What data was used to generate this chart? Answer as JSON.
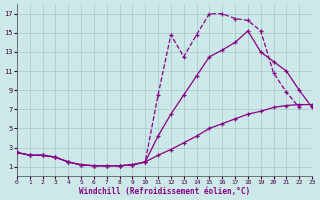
{
  "xlabel": "Windchill (Refroidissement éolien,°C)",
  "ylabel": "",
  "background_color": "#cce8e8",
  "grid_color": "#aacece",
  "line_color": "#880088",
  "xlim": [
    0,
    23
  ],
  "ylim": [
    0,
    18
  ],
  "xticks": [
    0,
    1,
    2,
    3,
    4,
    5,
    6,
    7,
    8,
    9,
    10,
    11,
    12,
    13,
    14,
    15,
    16,
    17,
    18,
    19,
    20,
    21,
    22,
    23
  ],
  "yticks": [
    1,
    3,
    5,
    7,
    9,
    11,
    13,
    15,
    17
  ],
  "line1_x": [
    0,
    1,
    2,
    3,
    4,
    5,
    6,
    7,
    8,
    9,
    10,
    11,
    12,
    13,
    14,
    15,
    16,
    17,
    18,
    19,
    20,
    21,
    22,
    23
  ],
  "line1_y": [
    2.5,
    2.2,
    2.2,
    2.0,
    1.5,
    1.2,
    1.1,
    1.1,
    1.1,
    1.2,
    1.5,
    8.5,
    14.8,
    12.5,
    14.8,
    17.0,
    17.0,
    16.5,
    16.3,
    15.2,
    10.8,
    8.8,
    7.2,
    null
  ],
  "line2_x": [
    0,
    1,
    2,
    3,
    4,
    5,
    6,
    7,
    8,
    9,
    10,
    11,
    12,
    13,
    14,
    15,
    16,
    17,
    18,
    19,
    20,
    21,
    22,
    23
  ],
  "line2_y": [
    2.5,
    2.2,
    2.2,
    2.0,
    1.5,
    1.2,
    1.1,
    1.1,
    1.1,
    1.2,
    1.5,
    4.2,
    6.5,
    8.5,
    10.5,
    12.5,
    13.2,
    14.0,
    15.2,
    13.0,
    12.0,
    11.0,
    9.0,
    7.2
  ],
  "line3_x": [
    0,
    1,
    2,
    3,
    4,
    5,
    6,
    7,
    8,
    9,
    10,
    11,
    12,
    13,
    14,
    15,
    16,
    17,
    18,
    19,
    20,
    21,
    22,
    23
  ],
  "line3_y": [
    2.5,
    2.2,
    2.2,
    2.0,
    1.5,
    1.2,
    1.1,
    1.1,
    1.1,
    1.2,
    1.5,
    2.2,
    2.8,
    3.5,
    4.2,
    5.0,
    5.5,
    6.0,
    6.5,
    6.8,
    7.2,
    7.4,
    7.5,
    7.5
  ],
  "line1_style": "--",
  "line2_style": "-",
  "line3_style": "-"
}
